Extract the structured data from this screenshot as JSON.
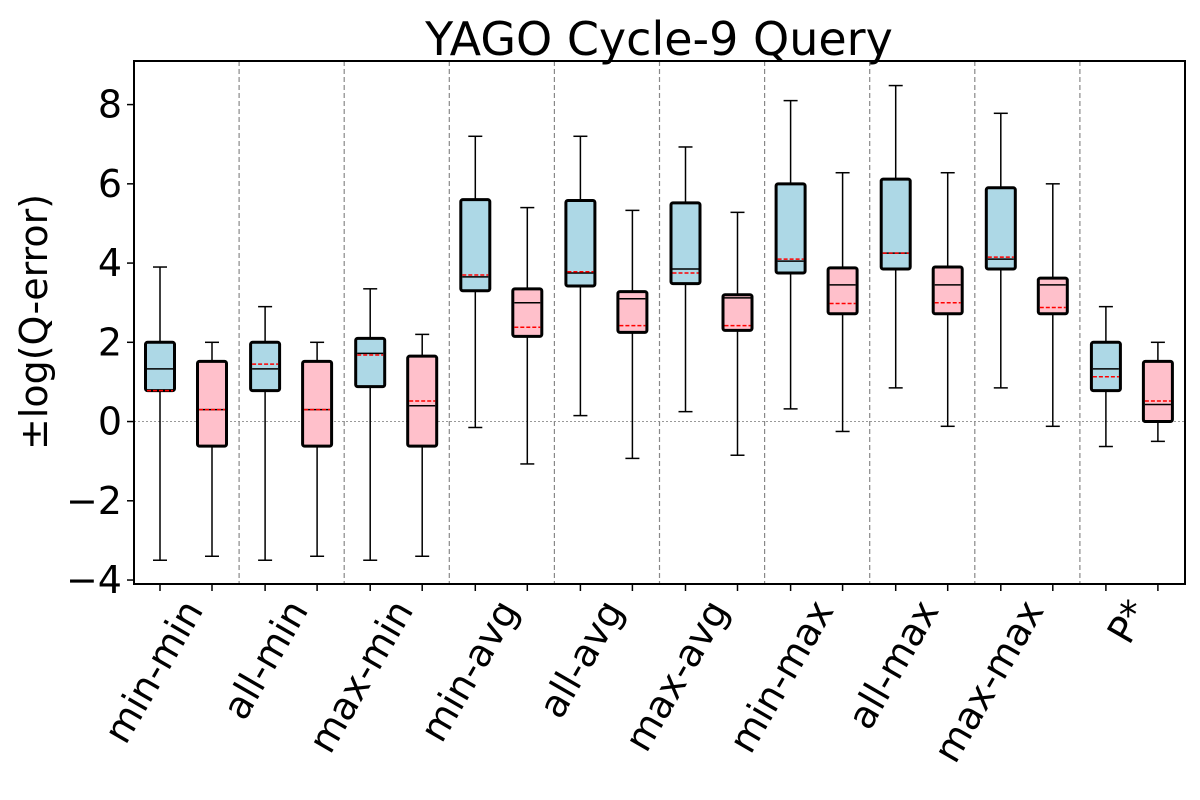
{
  "chart_data": {
    "type": "box",
    "title": "YAGO Cycle-9 Query",
    "xlabel": "",
    "ylabel": "±log(Q-error)",
    "ylim": [
      -4.1,
      9.1
    ],
    "yticks": [
      -4,
      -2,
      0,
      2,
      4,
      6,
      8
    ],
    "ytick_labels": [
      "−4",
      "−2",
      "0",
      "2",
      "4",
      "6",
      "8"
    ],
    "reference_line_y": 0,
    "series_colors": {
      "first": "#add8e6",
      "second": "#ffc0cb",
      "median": "#000000",
      "mean": "#ff0000"
    },
    "categories": [
      "min-min",
      "all-min",
      "max-min",
      "min-avg",
      "all-avg",
      "max-avg",
      "min-max",
      "all-max",
      "max-max",
      "P*"
    ],
    "groups": [
      {
        "category": "min-min",
        "boxes": [
          {
            "whisker_low": -3.5,
            "q1": 0.78,
            "median": 1.33,
            "mean": 0.78,
            "q3": 2.0,
            "whisker_high": 3.9
          },
          {
            "whisker_low": -3.4,
            "q1": -0.62,
            "median": 0.3,
            "mean": 0.3,
            "q3": 1.52,
            "whisker_high": 2.0
          }
        ]
      },
      {
        "category": "all-min",
        "boxes": [
          {
            "whisker_low": -3.5,
            "q1": 0.78,
            "median": 1.33,
            "mean": 1.45,
            "q3": 2.0,
            "whisker_high": 2.9
          },
          {
            "whisker_low": -3.4,
            "q1": -0.62,
            "median": 0.3,
            "mean": 0.3,
            "q3": 1.52,
            "whisker_high": 2.0
          }
        ]
      },
      {
        "category": "max-min",
        "boxes": [
          {
            "whisker_low": -3.5,
            "q1": 0.88,
            "median": 1.72,
            "mean": 1.68,
            "q3": 2.1,
            "whisker_high": 3.35
          },
          {
            "whisker_low": -3.4,
            "q1": -0.62,
            "median": 0.4,
            "mean": 0.52,
            "q3": 1.65,
            "whisker_high": 2.2
          }
        ]
      },
      {
        "category": "min-avg",
        "boxes": [
          {
            "whisker_low": -0.15,
            "q1": 3.3,
            "median": 3.65,
            "mean": 3.7,
            "q3": 5.6,
            "whisker_high": 7.2
          },
          {
            "whisker_low": -1.07,
            "q1": 2.15,
            "median": 3.0,
            "mean": 2.38,
            "q3": 3.35,
            "whisker_high": 5.4
          }
        ]
      },
      {
        "category": "all-avg",
        "boxes": [
          {
            "whisker_low": 0.15,
            "q1": 3.42,
            "median": 3.75,
            "mean": 3.78,
            "q3": 5.58,
            "whisker_high": 7.2
          },
          {
            "whisker_low": -0.93,
            "q1": 2.25,
            "median": 3.1,
            "mean": 2.42,
            "q3": 3.28,
            "whisker_high": 5.33
          }
        ]
      },
      {
        "category": "max-avg",
        "boxes": [
          {
            "whisker_low": 0.25,
            "q1": 3.48,
            "median": 3.85,
            "mean": 3.75,
            "q3": 5.52,
            "whisker_high": 6.93
          },
          {
            "whisker_low": -0.85,
            "q1": 2.3,
            "median": 3.12,
            "mean": 2.42,
            "q3": 3.2,
            "whisker_high": 5.28
          }
        ]
      },
      {
        "category": "min-max",
        "boxes": [
          {
            "whisker_low": 0.32,
            "q1": 3.75,
            "median": 4.05,
            "mean": 4.1,
            "q3": 6.0,
            "whisker_high": 8.1
          },
          {
            "whisker_low": -0.25,
            "q1": 2.72,
            "median": 3.45,
            "mean": 2.98,
            "q3": 3.88,
            "whisker_high": 6.28
          }
        ]
      },
      {
        "category": "all-max",
        "boxes": [
          {
            "whisker_low": 0.85,
            "q1": 3.85,
            "median": 4.25,
            "mean": 4.25,
            "q3": 6.12,
            "whisker_high": 8.48
          },
          {
            "whisker_low": -0.12,
            "q1": 2.72,
            "median": 3.45,
            "mean": 3.0,
            "q3": 3.9,
            "whisker_high": 6.28
          }
        ]
      },
      {
        "category": "max-max",
        "boxes": [
          {
            "whisker_low": 0.85,
            "q1": 3.85,
            "median": 4.1,
            "mean": 4.15,
            "q3": 5.9,
            "whisker_high": 7.78
          },
          {
            "whisker_low": -0.12,
            "q1": 2.72,
            "median": 3.45,
            "mean": 2.88,
            "q3": 3.62,
            "whisker_high": 6.0
          }
        ]
      },
      {
        "category": "P*",
        "boxes": [
          {
            "whisker_low": -0.63,
            "q1": 0.78,
            "median": 1.33,
            "mean": 1.13,
            "q3": 2.0,
            "whisker_high": 2.9
          },
          {
            "whisker_low": -0.5,
            "q1": 0.0,
            "median": 0.43,
            "mean": 0.52,
            "q3": 1.52,
            "whisker_high": 2.0
          }
        ]
      }
    ]
  }
}
